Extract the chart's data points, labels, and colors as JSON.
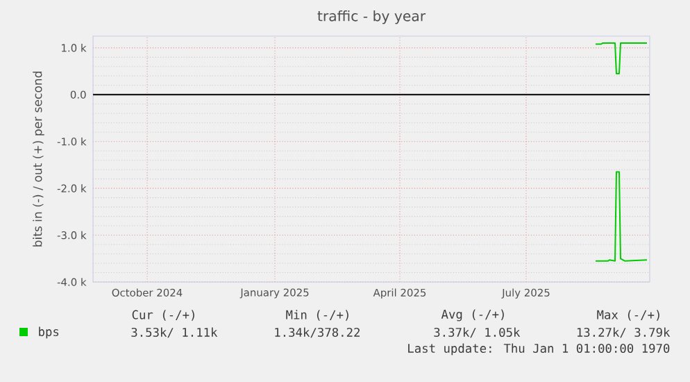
{
  "chart_data": {
    "type": "line",
    "title": "traffic - by year",
    "ylabel": "bits in (-) / out (+) per second",
    "xlim": [
      "2024-08-23",
      "2025-09-28"
    ],
    "xticks": [
      {
        "value": "2024-10-01",
        "label": "October 2024"
      },
      {
        "value": "2025-01-01",
        "label": "January 2025"
      },
      {
        "value": "2025-04-01",
        "label": "April 2025"
      },
      {
        "value": "2025-07-01",
        "label": "July 2025"
      }
    ],
    "ylim": [
      -4000,
      1250
    ],
    "yticks": [
      {
        "value": -4000,
        "label": "-4.0 k"
      },
      {
        "value": -3000,
        "label": "-3.0 k"
      },
      {
        "value": -2000,
        "label": "-2.0 k"
      },
      {
        "value": -1000,
        "label": "-1.0 k"
      },
      {
        "value": 0,
        "label": "0.0"
      },
      {
        "value": 1000,
        "label": "1.0 k"
      }
    ],
    "grid": true,
    "legend": "bottom",
    "ref_lines": [
      {
        "axis": "y",
        "value": 0,
        "color": "#000000"
      }
    ],
    "series": [
      {
        "name": "bps",
        "color": "#00cc00",
        "x": [
          "2025-08-20",
          "2025-08-24",
          "2025-08-25",
          "2025-09-03",
          "2025-09-04",
          "2025-09-06",
          "2025-09-07",
          "2025-09-26"
        ],
        "values": [
          1080,
          1080,
          1100,
          1100,
          450,
          450,
          1100,
          1100
        ]
      },
      {
        "color": "#00cc00",
        "x": [
          "2025-08-20",
          "2025-08-29",
          "2025-08-30",
          "2025-09-03",
          "2025-09-04",
          "2025-09-06",
          "2025-09-07",
          "2025-09-10",
          "2025-09-26"
        ],
        "values": [
          -3550,
          -3550,
          -3530,
          -3550,
          -1650,
          -1650,
          -3500,
          -3550,
          -3530
        ]
      }
    ],
    "annotations": [
      "Cur (-/+)",
      "Min (-/+)",
      "Avg (-/+)",
      "Max (-/+)",
      "3.53k/   1.11k",
      "1.34k/378.22",
      "3.37k/   1.05k",
      "13.27k/   3.79k",
      "Last update: Thu Jan  1 01:00:00 1970"
    ]
  }
}
